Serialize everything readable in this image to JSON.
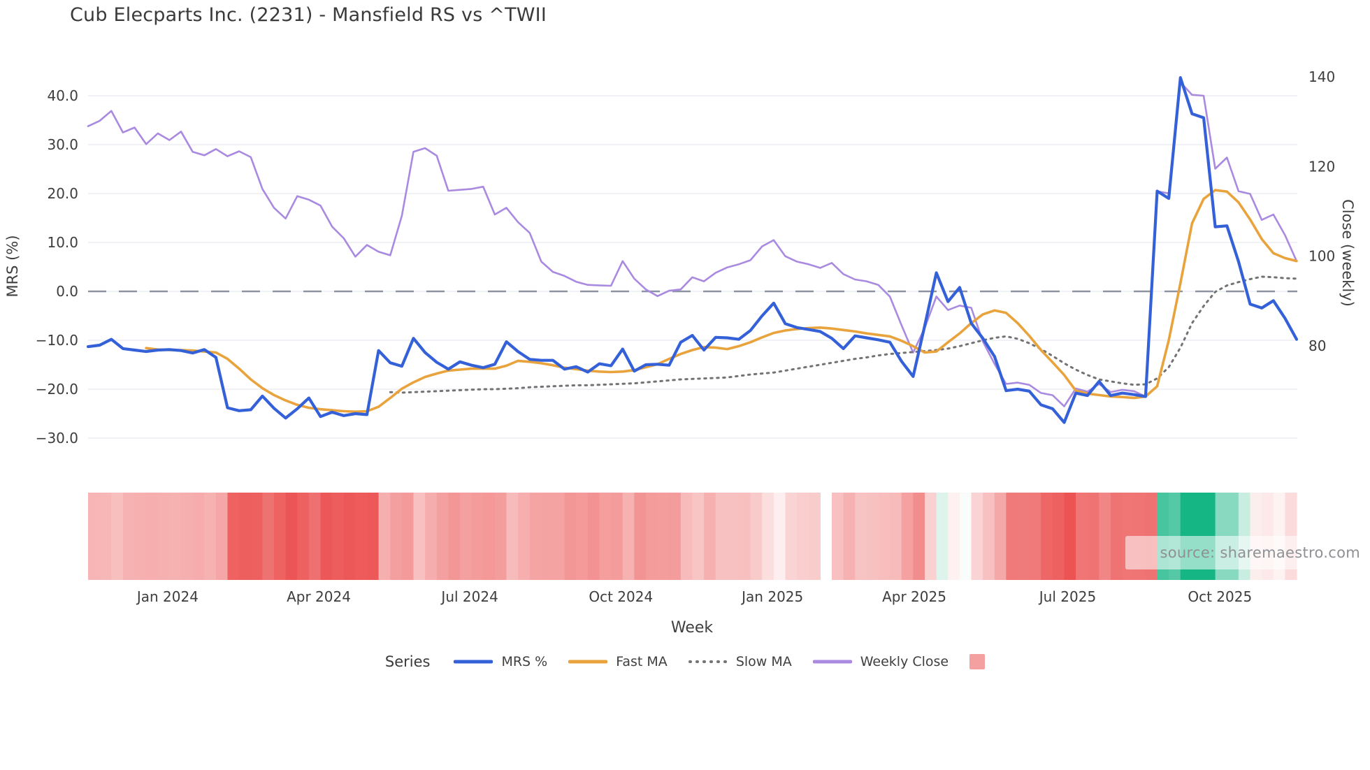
{
  "chart": {
    "title": "Cub Elecparts Inc. (2231) - Mansfield RS vs ^TWII",
    "x_axis_title": "Week",
    "left_axis_title": "MRS (%)",
    "right_axis_title": "Close (weekly)",
    "legend_title": "Series",
    "watermark": "source: sharemaestro.com"
  },
  "chart_data": {
    "type": "line",
    "x_unit": "weekly points, Nov 2023 - Nov 2025",
    "grid": true,
    "legend_position": "bottom",
    "x_ticks": [
      {
        "label": "Jan 2024",
        "week": 6.85
      },
      {
        "label": "Apr 2024",
        "week": 19.85
      },
      {
        "label": "Jul 2024",
        "week": 32.85
      },
      {
        "label": "Oct 2024",
        "week": 45.85
      },
      {
        "label": "Jan 2025",
        "week": 58.9
      },
      {
        "label": "Apr 2025",
        "week": 71.1
      },
      {
        "label": "Jul 2025",
        "week": 84.3
      },
      {
        "label": "Oct 2025",
        "week": 97.4
      }
    ],
    "left_axis": {
      "title": "MRS (%)",
      "tick_labels": [
        "40.0",
        "30.0",
        "20.0",
        "10.0",
        "0.0",
        "−10.0",
        "−20.0",
        "−30.0"
      ],
      "tick_values": [
        40,
        30,
        20,
        10,
        0,
        -10,
        -20,
        -30
      ],
      "zero_line": true,
      "range": [
        -33,
        46
      ]
    },
    "right_axis": {
      "title": "Close (weekly)",
      "tick_labels": [
        "140",
        "120",
        "100",
        "80"
      ],
      "tick_values": [
        140,
        120,
        100,
        80
      ],
      "range": [
        60,
        144
      ]
    },
    "series": [
      {
        "name": "Weekly Close",
        "axis": "right",
        "color": "#a98ae0",
        "width": 2.6,
        "dash": null,
        "values": [
          129.0,
          130.2,
          132.4,
          127.6,
          128.7,
          125.0,
          127.4,
          125.9,
          127.8,
          123.3,
          122.5,
          123.9,
          122.3,
          123.4,
          122.1,
          115.0,
          110.8,
          108.4,
          113.4,
          112.6,
          111.3,
          106.6,
          104.0,
          99.9,
          102.5,
          101.0,
          100.2,
          109.0,
          123.3,
          124.1,
          122.4,
          114.6,
          114.8,
          115.0,
          115.5,
          109.3,
          110.8,
          107.6,
          105.2,
          98.8,
          96.5,
          95.6,
          94.3,
          93.6,
          93.5,
          93.4,
          98.9,
          95.0,
          92.6,
          91.1,
          92.3,
          92.6,
          95.3,
          94.4,
          96.3,
          97.5,
          98.2,
          99.1,
          102.2,
          103.6,
          100.0,
          98.8,
          98.2,
          97.4,
          98.5,
          96.0,
          94.8,
          94.4,
          93.6,
          91.0,
          84.6,
          78.5,
          84.0,
          91.0,
          88.0,
          89.0,
          88.5,
          81.0,
          76.0,
          71.5,
          71.8,
          71.3,
          69.5,
          69.0,
          66.5,
          70.5,
          69.8,
          71.5,
          69.7,
          70.2,
          69.9,
          68.7,
          114.5,
          114.0,
          138.8,
          136.0,
          135.8,
          119.5,
          122.0,
          114.5,
          113.9,
          108.1,
          109.3,
          104.7,
          98.9
        ]
      },
      {
        "name": "Slow MA",
        "axis": "left",
        "color": "#737373",
        "width": 3.0,
        "dash": "dot",
        "values": [
          null,
          null,
          null,
          null,
          null,
          null,
          null,
          null,
          null,
          null,
          null,
          null,
          null,
          null,
          null,
          null,
          null,
          null,
          null,
          null,
          null,
          null,
          null,
          null,
          null,
          null,
          -20.6,
          -20.7,
          -20.6,
          -20.5,
          -20.4,
          -20.3,
          -20.2,
          -20.1,
          -20.0,
          -20.0,
          -19.9,
          -19.8,
          -19.6,
          -19.5,
          -19.4,
          -19.3,
          -19.2,
          -19.2,
          -19.1,
          -19.0,
          -18.9,
          -18.8,
          -18.6,
          -18.4,
          -18.2,
          -18.0,
          -17.9,
          -17.8,
          -17.7,
          -17.6,
          -17.3,
          -17.0,
          -16.8,
          -16.6,
          -16.2,
          -15.8,
          -15.4,
          -15.0,
          -14.6,
          -14.2,
          -13.8,
          -13.5,
          -13.1,
          -12.8,
          -12.6,
          -12.4,
          -12.2,
          -12.0,
          -11.7,
          -11.2,
          -10.6,
          -10.0,
          -9.5,
          -9.2,
          -9.7,
          -10.6,
          -11.8,
          -13.2,
          -14.7,
          -16.0,
          -17.1,
          -18.0,
          -18.4,
          -18.8,
          -19.1,
          -19.0,
          -17.8,
          -15.5,
          -11.5,
          -6.5,
          -3.0,
          -0.1,
          1.2,
          1.9,
          2.5,
          3.0,
          2.9,
          2.7,
          2.6
        ]
      },
      {
        "name": "Fast MA",
        "axis": "left",
        "color": "#e9a33c",
        "width": 3.6,
        "dash": null,
        "values": [
          null,
          null,
          null,
          null,
          null,
          -11.6,
          -11.9,
          -12.0,
          -12.0,
          -12.1,
          -12.3,
          -12.5,
          -13.8,
          -15.8,
          -18.0,
          -19.8,
          -21.2,
          -22.3,
          -23.2,
          -23.8,
          -24.1,
          -24.3,
          -24.5,
          -24.6,
          -24.5,
          -23.6,
          -21.8,
          -19.9,
          -18.6,
          -17.5,
          -16.8,
          -16.2,
          -16.0,
          -15.8,
          -15.8,
          -15.8,
          -15.2,
          -14.2,
          -14.4,
          -14.7,
          -15.1,
          -15.6,
          -15.9,
          -16.2,
          -16.4,
          -16.5,
          -16.4,
          -16.1,
          -15.5,
          -14.9,
          -13.8,
          -12.8,
          -12.0,
          -11.4,
          -11.5,
          -11.8,
          -11.2,
          -10.4,
          -9.4,
          -8.5,
          -8.0,
          -7.7,
          -7.5,
          -7.4,
          -7.6,
          -7.9,
          -8.2,
          -8.6,
          -8.9,
          -9.2,
          -10.1,
          -11.2,
          -12.5,
          -12.3,
          -10.4,
          -8.6,
          -6.5,
          -4.7,
          -3.9,
          -4.4,
          -6.5,
          -9.1,
          -12.0,
          -14.5,
          -17.1,
          -20.3,
          -20.9,
          -21.2,
          -21.5,
          -21.6,
          -21.8,
          -21.5,
          -19.4,
          -10.0,
          1.7,
          13.9,
          18.9,
          20.7,
          20.4,
          18.2,
          14.7,
          10.7,
          7.8,
          6.8,
          6.2
        ]
      },
      {
        "name": "MRS %",
        "axis": "left",
        "color": "#3561d8",
        "width": 4.2,
        "dash": null,
        "values": [
          -11.3,
          -11.0,
          -9.8,
          -11.7,
          -12.0,
          -12.3,
          -12.0,
          -11.9,
          -12.1,
          -12.6,
          -11.9,
          -13.5,
          -23.8,
          -24.4,
          -24.2,
          -21.4,
          -23.9,
          -25.9,
          -24.0,
          -21.8,
          -25.6,
          -24.7,
          -25.4,
          -25.0,
          -25.2,
          -12.1,
          -14.6,
          -15.3,
          -9.6,
          -12.5,
          -14.5,
          -15.9,
          -14.4,
          -15.1,
          -15.6,
          -14.9,
          -10.3,
          -12.3,
          -13.9,
          -14.1,
          -14.1,
          -15.9,
          -15.4,
          -16.5,
          -14.8,
          -15.2,
          -11.8,
          -16.3,
          -15.0,
          -14.9,
          -15.1,
          -10.4,
          -9.0,
          -12.0,
          -9.4,
          -9.5,
          -9.8,
          -8.0,
          -5.0,
          -2.4,
          -6.6,
          -7.4,
          -7.8,
          -8.2,
          -9.6,
          -11.7,
          -9.1,
          -9.5,
          -9.9,
          -10.4,
          -14.3,
          -17.4,
          -7.0,
          3.8,
          -2.1,
          0.8,
          -6.5,
          -9.6,
          -13.3,
          -20.3,
          -20.0,
          -20.4,
          -23.2,
          -24.0,
          -26.8,
          -20.8,
          -21.3,
          -18.4,
          -21.3,
          -20.8,
          -21.1,
          -21.5,
          20.5,
          19.0,
          43.7,
          36.3,
          35.5,
          13.2,
          13.4,
          6.1,
          -2.6,
          -3.4,
          -1.9,
          -5.5,
          -9.8
        ]
      },
      {
        "name": "Heat strip",
        "type": "heatmap-strip",
        "derived_from": "MRS %",
        "neg_color": "#ec5454",
        "pos_color": "#16b584",
        "neg_max": 26,
        "pos_max": 26,
        "missing_weeks": [
          63
        ]
      }
    ]
  },
  "legend": {
    "title": "Series",
    "items": [
      {
        "label": "MRS %",
        "color": "#3561d8",
        "type": "line"
      },
      {
        "label": "Fast MA",
        "color": "#e9a33c",
        "type": "line"
      },
      {
        "label": "Slow MA",
        "color": "#737373",
        "type": "dotted-line"
      },
      {
        "label": "Weekly Close",
        "color": "#a98ae0",
        "type": "line"
      },
      {
        "label": "",
        "color": "#f4a0a0",
        "type": "square"
      }
    ]
  },
  "colors": {
    "grid_line": "#eceef4",
    "zero_dash_line": "#8d93a1",
    "tick_text": "#3d3d3d",
    "title_text": "#3a3a3a"
  }
}
